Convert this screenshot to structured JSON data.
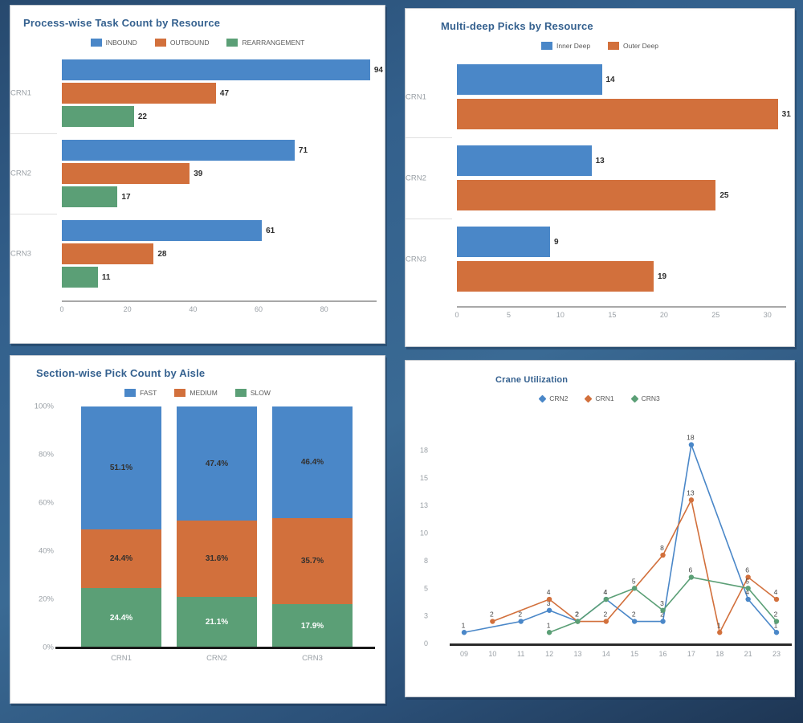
{
  "palette": {
    "blue": "#4a87c8",
    "orange": "#d2703c",
    "green": "#5b9f76",
    "title": "#35618f",
    "tick_text": "#9aa0a6",
    "value_label": "#2d2d2d",
    "axis_line": "#a8a8a8",
    "dark_axis": "#1b1b1b",
    "background": "#33608c"
  },
  "chart_data": [
    {
      "id": "process-task-count",
      "type": "bar",
      "orientation": "horizontal",
      "title": "Process-wise Task Count by Resource",
      "legend_position": "top",
      "categories": [
        "CRN1",
        "CRN2",
        "CRN3"
      ],
      "series": [
        {
          "name": "INBOUND",
          "color": "#4a87c8",
          "values": [
            94,
            71,
            61
          ]
        },
        {
          "name": "OUTBOUND",
          "color": "#d2703c",
          "values": [
            47,
            39,
            28
          ]
        },
        {
          "name": "REARRANGEMENT",
          "color": "#5b9f76",
          "values": [
            22,
            17,
            11
          ]
        }
      ],
      "x_ticks": [
        0,
        20,
        40,
        60,
        80
      ],
      "x_max": 96
    },
    {
      "id": "multi-deep-picks",
      "type": "bar",
      "orientation": "horizontal",
      "title": "Multi-deep Picks by Resource",
      "legend_position": "top",
      "categories": [
        "CRN1",
        "CRN2",
        "CRN3"
      ],
      "series": [
        {
          "name": "Inner Deep",
          "color": "#4a87c8",
          "values": [
            14,
            13,
            9
          ]
        },
        {
          "name": "Outer Deep",
          "color": "#d2703c",
          "values": [
            31,
            25,
            19
          ]
        }
      ],
      "x_ticks": [
        0,
        5,
        10,
        15,
        20,
        25,
        30
      ],
      "x_max": 31.8
    },
    {
      "id": "section-pick-count",
      "type": "stacked-bar-100",
      "title": "Section-wise Pick Count by Aisle",
      "legend_position": "top",
      "categories": [
        "CRN1",
        "CRN2",
        "CRN3"
      ],
      "series": [
        {
          "name": "FAST",
          "color": "#4a87c8",
          "values": [
            51.1,
            47.4,
            46.4
          ],
          "label_color": "#33302e"
        },
        {
          "name": "MEDIUM",
          "color": "#d2703c",
          "values": [
            24.4,
            31.6,
            35.7
          ],
          "label_color": "#33302e"
        },
        {
          "name": "SLOW",
          "color": "#5b9f76",
          "values": [
            24.4,
            21.1,
            17.9
          ],
          "label_color": "#ffffff"
        }
      ],
      "stack_order_top_to_bottom": [
        "FAST",
        "MEDIUM",
        "SLOW"
      ],
      "y_ticks": [
        "0%",
        "20%",
        "40%",
        "60%",
        "80%",
        "100%"
      ],
      "value_suffix": "%"
    },
    {
      "id": "crane-utilization",
      "type": "line",
      "title": "Crane Utilization",
      "legend_position": "top",
      "x": [
        "09",
        "10",
        "11",
        "12",
        "13",
        "14",
        "15",
        "16",
        "17",
        "18",
        "21",
        "23"
      ],
      "y_ticks": [
        {
          "v": 0,
          "label": "0"
        },
        {
          "v": 2.5,
          "label": "3"
        },
        {
          "v": 5,
          "label": "5"
        },
        {
          "v": 7.5,
          "label": "8"
        },
        {
          "v": 10,
          "label": "10"
        },
        {
          "v": 12.5,
          "label": "13"
        },
        {
          "v": 15,
          "label": "15"
        },
        {
          "v": 17.5,
          "label": "18"
        }
      ],
      "y_max": 19.5,
      "series": [
        {
          "name": "CRN2",
          "color": "#4a87c8",
          "points": [
            [
              "09",
              1
            ],
            [
              "11",
              2
            ],
            [
              "12",
              3
            ],
            [
              "13",
              2
            ],
            [
              "14",
              4
            ],
            [
              "15",
              2
            ],
            [
              "16",
              2
            ],
            [
              "17",
              18
            ],
            [
              "21",
              4
            ],
            [
              "23",
              1
            ]
          ]
        },
        {
          "name": "CRN1",
          "color": "#d2703c",
          "points": [
            [
              "10",
              2
            ],
            [
              "12",
              4
            ],
            [
              "13",
              2
            ],
            [
              "14",
              2
            ],
            [
              "16",
              8
            ],
            [
              "17",
              13
            ],
            [
              "18",
              1
            ],
            [
              "21",
              6
            ],
            [
              "23",
              4
            ]
          ]
        },
        {
          "name": "CRN3",
          "color": "#5b9f76",
          "points": [
            [
              "12",
              1
            ],
            [
              "13",
              2
            ],
            [
              "14",
              4
            ],
            [
              "15",
              5
            ],
            [
              "16",
              3
            ],
            [
              "17",
              6
            ],
            [
              "21",
              5
            ],
            [
              "23",
              2
            ]
          ]
        }
      ]
    }
  ]
}
